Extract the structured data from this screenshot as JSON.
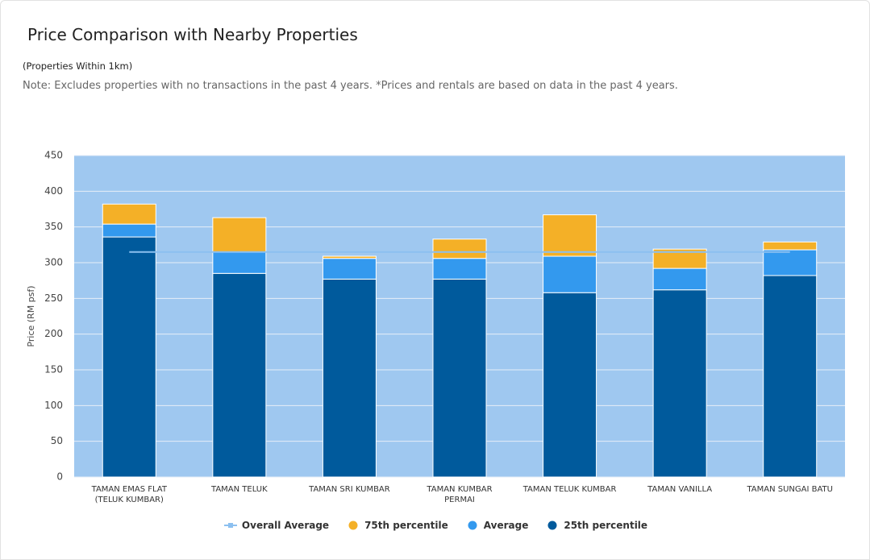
{
  "chart_data": {
    "type": "bar",
    "title": "Price Comparison with Nearby Properties",
    "subtitle": "(Properties Within 1km)",
    "note": "Note: Excludes properties with no transactions in the past 4 years. *Prices and rentals are based on data in the past 4 years.",
    "y_label": "Price (RM psf)",
    "categories": [
      "TAMAN EMAS FLAT (TELUK KUMBAR)",
      "TAMAN TELUK",
      "TAMAN SRI KUMBAR",
      "TAMAN KUMBAR PERMAI",
      "TAMAN TELUK KUMBAR",
      "TAMAN VANILLA",
      "TAMAN SUNGAI BATU"
    ],
    "series": [
      {
        "name": "Overall Average",
        "type": "line",
        "color": "#8cc0f0",
        "values": [
          315,
          315,
          315,
          315,
          315,
          315,
          315
        ]
      },
      {
        "name": "75th percentile",
        "color": "#f4b027",
        "values": [
          28,
          48,
          3,
          27,
          58,
          27,
          11
        ]
      },
      {
        "name": "Average",
        "color": "#3399ee",
        "values": [
          18,
          30,
          29,
          29,
          51,
          30,
          36
        ]
      },
      {
        "name": "25th percentile",
        "color": "#005a9c",
        "values": [
          336,
          285,
          277,
          277,
          258,
          262,
          282
        ]
      }
    ],
    "ylim": [
      0,
      450
    ],
    "yticks": [
      0,
      50,
      100,
      150,
      200,
      250,
      300,
      350,
      400,
      450
    ],
    "grid": true,
    "plot_background": "#9fc8f0"
  }
}
